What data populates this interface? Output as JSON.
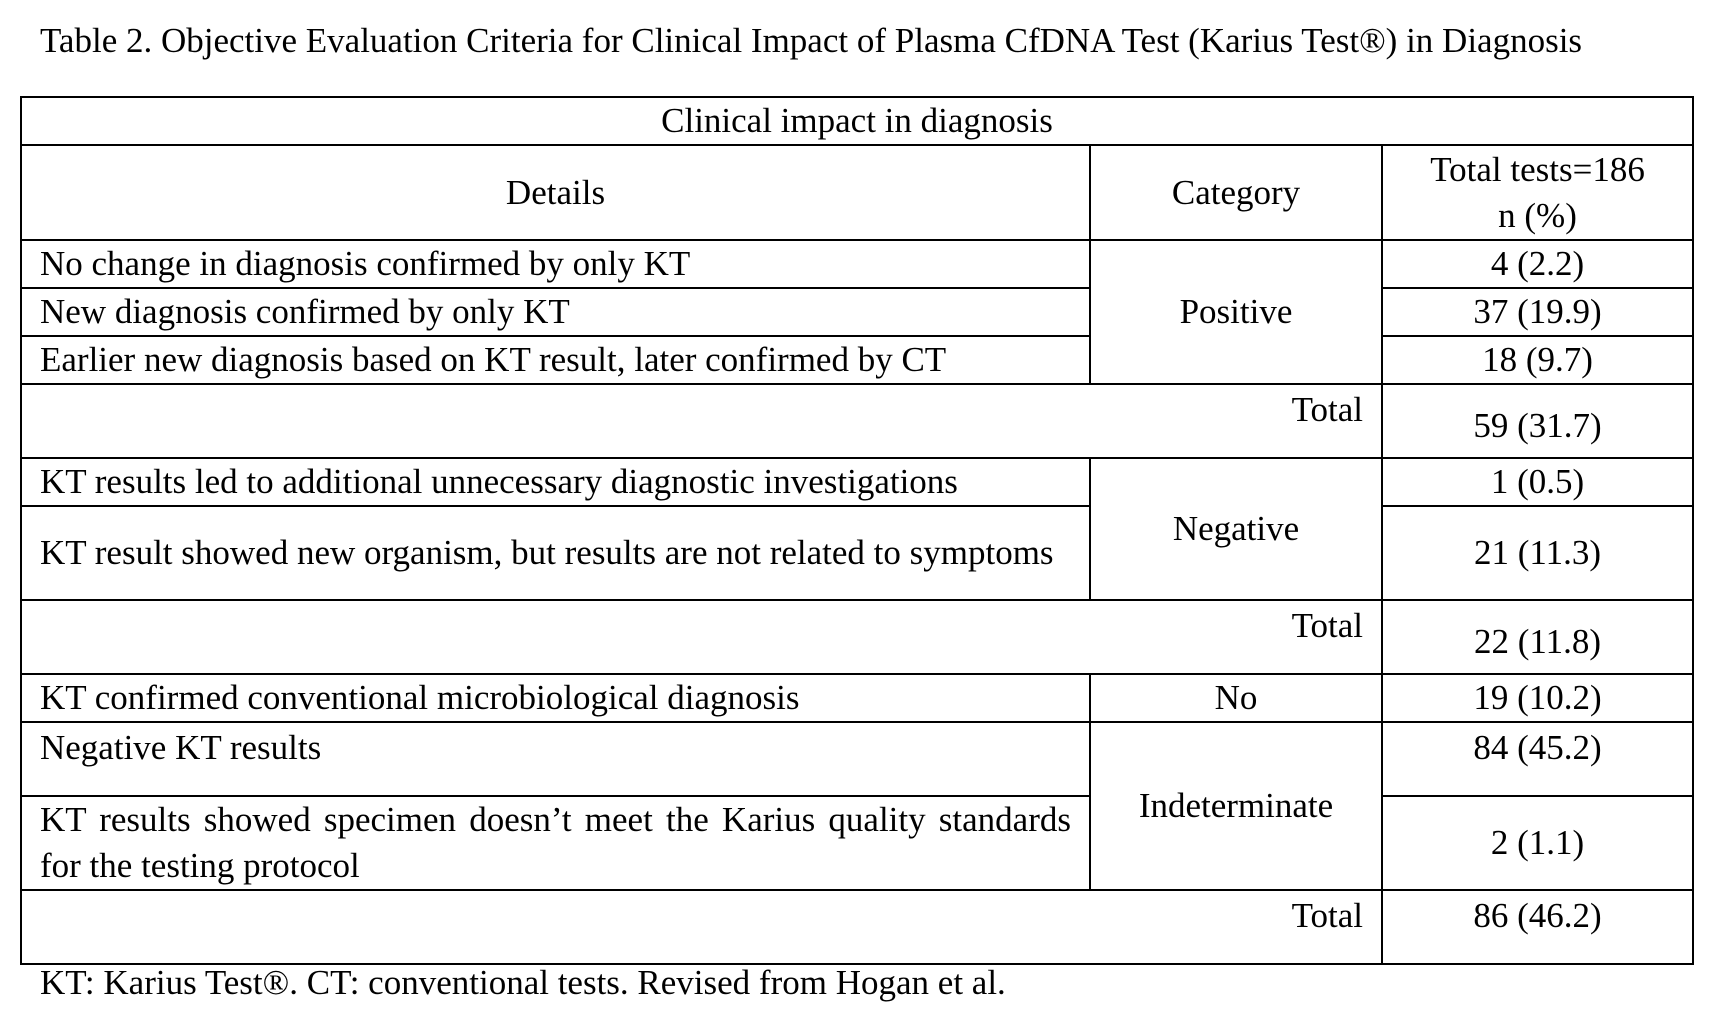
{
  "caption": "Table 2. Objective Evaluation Criteria for Clinical Impact of Plasma CfDNA Test (Karius Test®) in Diagnosis",
  "table": {
    "title": "Clinical impact in diagnosis",
    "headers": {
      "details": "Details",
      "category": "Category",
      "total_line1": "Total tests=186",
      "total_line2": "n (%)"
    },
    "positive": {
      "category": "Positive",
      "rows": [
        {
          "detail": "No change in diagnosis confirmed by only KT",
          "value": "4 (2.2)"
        },
        {
          "detail": "New diagnosis confirmed by only KT",
          "value": "37 (19.9)"
        },
        {
          "detail": "Earlier new diagnosis based on KT result, later confirmed by CT",
          "value": "18 (9.7)"
        }
      ],
      "total_label": "Total",
      "total_value": "59 (31.7)"
    },
    "negative": {
      "category": "Negative",
      "rows": [
        {
          "detail": "KT results led to additional unnecessary diagnostic investigations",
          "value": "1 (0.5)"
        },
        {
          "detail": "KT result showed new organism, but results are not related to symptoms",
          "value": "21 (11.3)"
        }
      ],
      "total_label": "Total",
      "total_value": "22 (11.8)"
    },
    "no": {
      "category": "No",
      "detail": "KT confirmed conventional microbiological diagnosis",
      "value": "19 (10.2)"
    },
    "indeterminate": {
      "category": "Indeterminate",
      "rows": [
        {
          "detail": "Negative KT results",
          "value": "84 (45.2)"
        },
        {
          "detail": "KT results showed specimen doesn’t meet the Karius quality standards for the testing protocol",
          "value": "2 (1.1)"
        }
      ],
      "total_label": "Total",
      "total_value": "86 (46.2)"
    }
  },
  "footnote": "KT: Karius Test®. CT: conventional tests. Revised from Hogan et al."
}
